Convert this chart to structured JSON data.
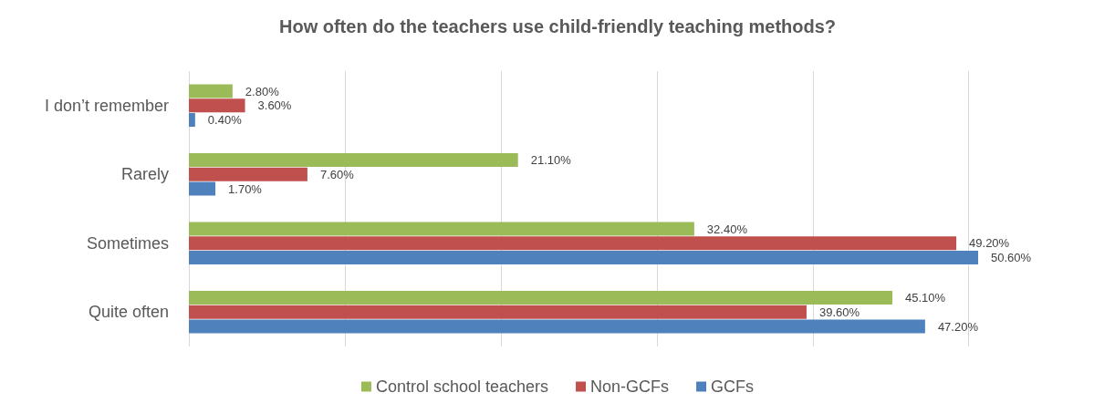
{
  "chart_data": {
    "type": "bar",
    "orientation": "horizontal",
    "title": "How often do the teachers use child-friendly teaching methods?",
    "categories": [
      "I don’t remember",
      "Rarely",
      "Sometimes",
      "Quite often"
    ],
    "series": [
      {
        "name": "Control school teachers",
        "color": "#9bbb59",
        "values": [
          2.8,
          21.1,
          32.4,
          45.1
        ],
        "value_labels": [
          "2.80%",
          "21.10%",
          "32.40%",
          "45.10%"
        ]
      },
      {
        "name": "Non-GCFs",
        "color": "#c0504d",
        "values": [
          3.6,
          7.6,
          49.2,
          39.6
        ],
        "value_labels": [
          "3.60%",
          "7.60%",
          "49.20%",
          "39.60%"
        ]
      },
      {
        "name": "GCFs",
        "color": "#4f81bd",
        "values": [
          0.4,
          1.7,
          50.6,
          47.2
        ],
        "value_labels": [
          "0.40%",
          "1.70%",
          "50.60%",
          "47.20%"
        ]
      }
    ],
    "xticks": [
      {
        "value": 0,
        "label": null
      },
      {
        "value": 10,
        "label": null
      },
      {
        "value": 20,
        "label": null
      },
      {
        "value": 30,
        "label": null
      },
      {
        "value": 40,
        "label": null
      },
      {
        "value": 50,
        "label": null
      }
    ],
    "tick_labels": "y",
    "grid": "x",
    "legend": "bottom"
  }
}
